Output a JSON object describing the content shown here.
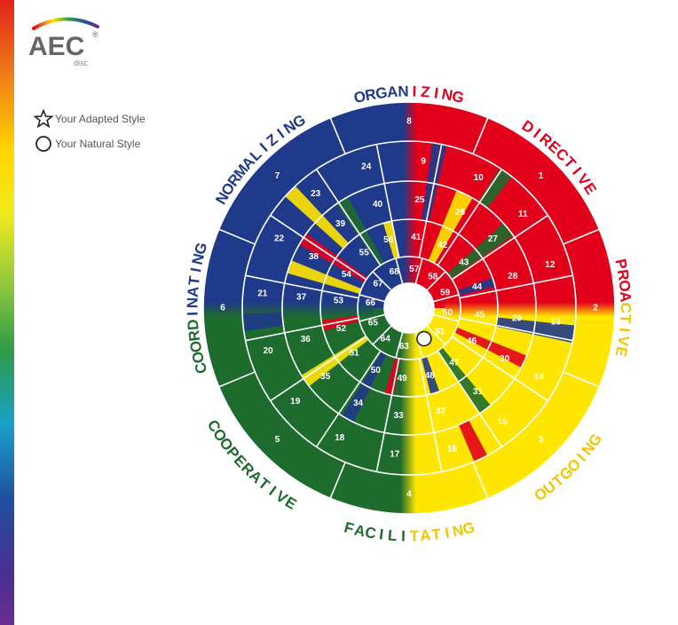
{
  "logo": {
    "text": "AEC",
    "sub": "disc",
    "mark": "®"
  },
  "legend": {
    "adapted": {
      "label": "Your Adapted Style",
      "icon": "star-outline-icon"
    },
    "natural": {
      "label": "Your Natural Style",
      "icon": "circle-outline-icon"
    }
  },
  "colors": {
    "red": "#e2001a",
    "yellow": "#ffe600",
    "green": "#1e6b2e",
    "blue": "#1f3a8a"
  },
  "wheel": {
    "labels": [
      {
        "parts": [
          {
            "text": "ORGAN",
            "color": "#1f3a8a"
          },
          {
            "text": "IZING",
            "color": "#e2001a"
          }
        ]
      },
      {
        "parts": [
          {
            "text": "DIRECTIVE",
            "color": "#e2001a"
          }
        ]
      },
      {
        "parts": [
          {
            "text": "PROA",
            "color": "#e2001a"
          },
          {
            "text": "CTIVE",
            "color": "#f2c500"
          }
        ]
      },
      {
        "parts": [
          {
            "text": "OUTGOING",
            "color": "#f2c500"
          }
        ]
      },
      {
        "parts": [
          {
            "text": "FACILI",
            "color": "#1e6b2e"
          },
          {
            "text": "TATING",
            "color": "#f2c500"
          }
        ]
      },
      {
        "parts": [
          {
            "text": "COOPERATIVE",
            "color": "#1e6b2e"
          }
        ]
      },
      {
        "parts": [
          {
            "text": "COORD",
            "color": "#1e6b2e"
          },
          {
            "text": "INATING",
            "color": "#1f3a8a"
          }
        ]
      },
      {
        "parts": [
          {
            "text": "NORMALIZING",
            "color": "#1f3a8a"
          }
        ]
      }
    ],
    "ring1": [
      "8",
      "1",
      "2",
      "3",
      "4",
      "5",
      "6",
      "7"
    ],
    "ring2": [
      "9",
      "10",
      "11",
      "12",
      "13",
      "14",
      "15",
      "16",
      "17",
      "18",
      "19",
      "20",
      "21",
      "22",
      "23",
      "24"
    ],
    "ring3": [
      "25",
      "26",
      "27",
      "28",
      "29",
      "30",
      "31",
      "32",
      "33",
      "34",
      "35",
      "36",
      "37",
      "38",
      "39",
      "40"
    ],
    "ring4": [
      "41",
      "42",
      "43",
      "44",
      "45",
      "46",
      "47",
      "48",
      "49",
      "50",
      "51",
      "52",
      "53",
      "54",
      "55",
      "56"
    ],
    "ring5": [
      "57",
      "58",
      "59",
      "60",
      "61",
      "62",
      "63",
      "64",
      "65",
      "66",
      "67",
      "68"
    ],
    "natural_style_marker": "62"
  }
}
